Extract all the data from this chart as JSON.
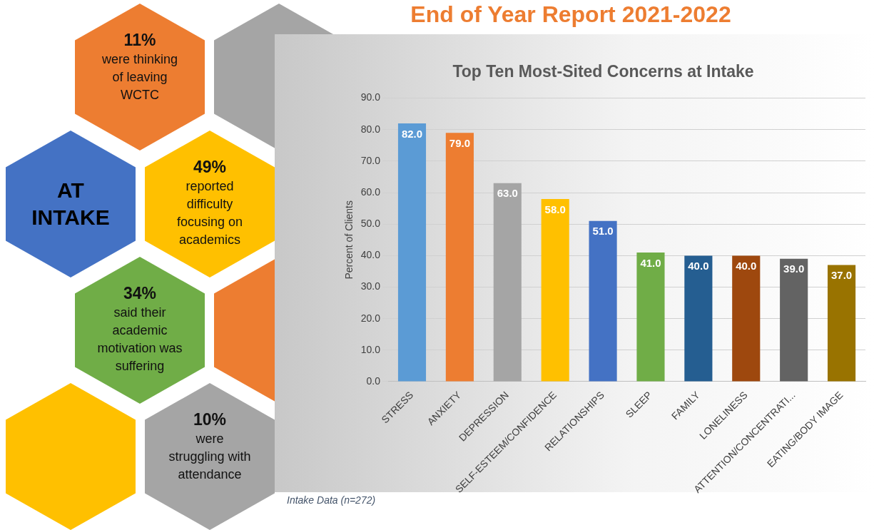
{
  "chart_data": [
    {
      "type": "other",
      "title": "AT INTAKE",
      "annotations": [
        "11%",
        "were thinking of leaving WCTC",
        "49%",
        "reported difficulty focusing on academics",
        "34%",
        "said their academic motivation was suffering",
        "10%",
        "were struggling with attendance"
      ]
    },
    {
      "type": "bar",
      "title": "Top Ten Most-Sited Concerns at Intake",
      "ylabel": "Percent of Clients",
      "categories": [
        "STRESS",
        "ANXIETY",
        "DEPRESSION",
        "SELF-ESTEEM/CONFIDENCE",
        "RELATIONSHIPS",
        "SLEEP",
        "FAMILY",
        "LONELINESS",
        "ATTENTION/CONCENTRATI...",
        "EATING/BODY IMAGE"
      ],
      "values": [
        82.0,
        79.0,
        63.0,
        58.0,
        51.0,
        41.0,
        40.0,
        40.0,
        39.0,
        37.0
      ],
      "value_labels": [
        "82.0",
        "79.0",
        "63.0",
        "58.0",
        "51.0",
        "41.0",
        "40.0",
        "40.0",
        "39.0",
        "37.0"
      ],
      "colors": [
        "#5b9bd5",
        "#ed7d31",
        "#a5a5a5",
        "#ffc000",
        "#4472c4",
        "#70ad47",
        "#255e91",
        "#9e480e",
        "#636363",
        "#997300"
      ],
      "ylim": [
        0,
        90
      ],
      "yticks": [
        {
          "value": 0,
          "label": "0.0"
        },
        {
          "value": 10,
          "label": "10.0"
        },
        {
          "value": 20,
          "label": "20.0"
        },
        {
          "value": 30,
          "label": "30.0"
        },
        {
          "value": 40,
          "label": "40.0"
        },
        {
          "value": 50,
          "label": "50.0"
        },
        {
          "value": 60,
          "label": "60.0"
        },
        {
          "value": 70,
          "label": "70.0"
        },
        {
          "value": 80,
          "label": "80.0"
        },
        {
          "value": 90,
          "label": "90.0"
        }
      ],
      "grid": "y",
      "legend": false,
      "annotations": [
        "End of Year Report 2021-2022",
        "Intake Data (n=272)"
      ]
    }
  ]
}
